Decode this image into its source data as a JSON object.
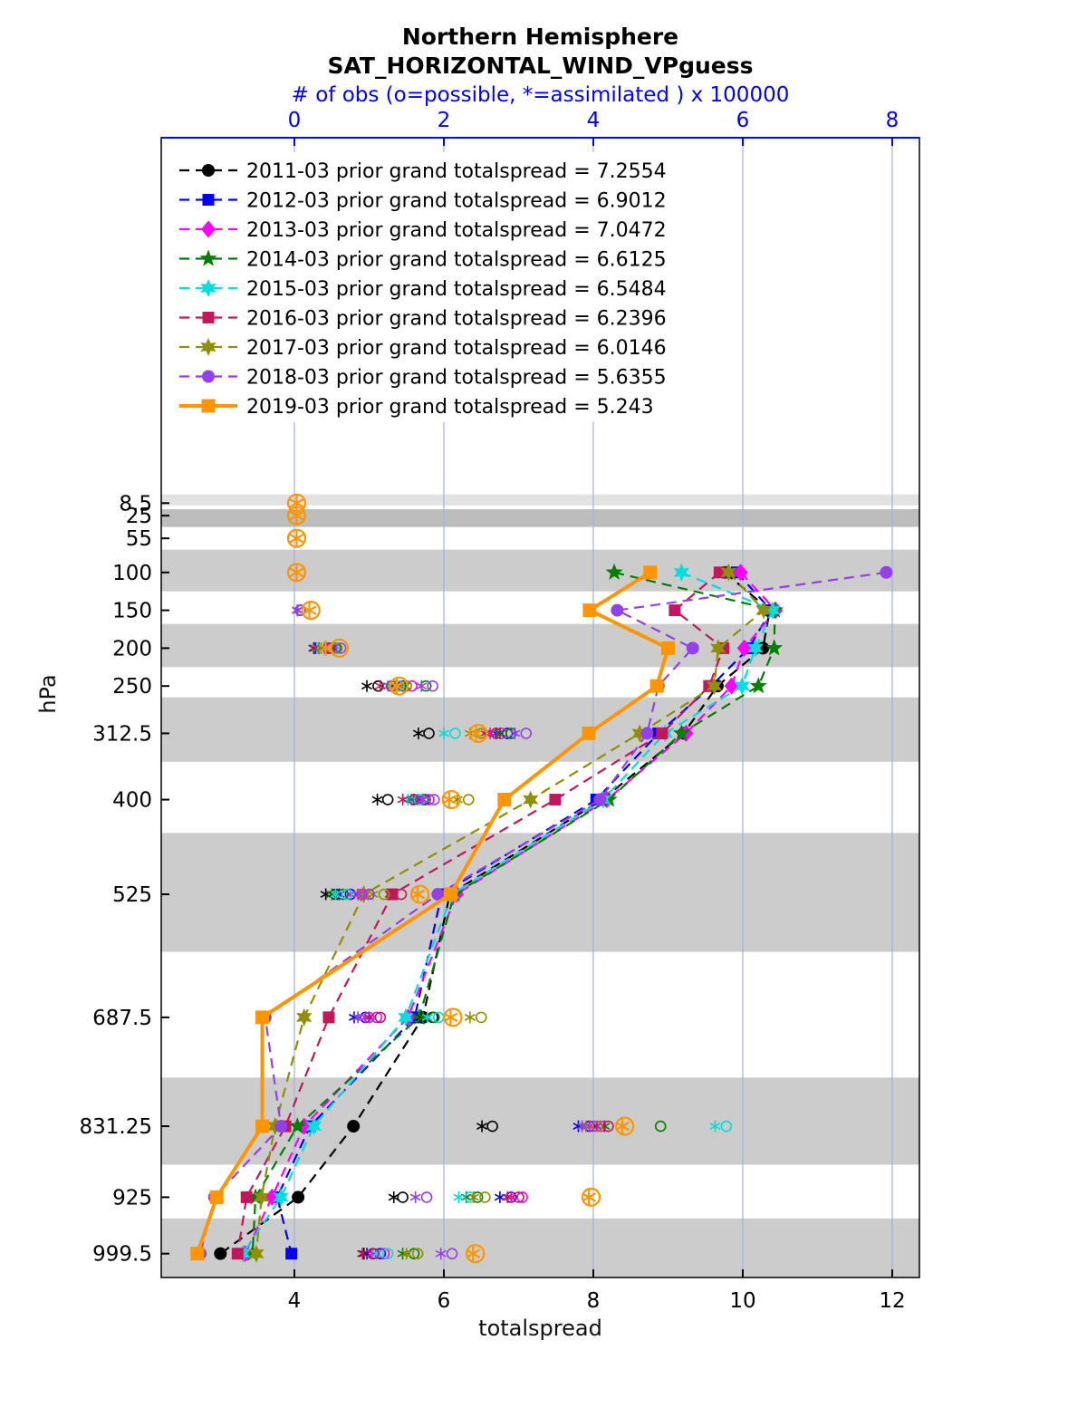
{
  "chart_data": {
    "type": "line",
    "title": "Northern Hemisphere",
    "subtitle": "SAT_HORIZONTAL_WIND_VPguess",
    "obs_axis_label": "# of obs (o=possible, *=assimilated ) x 100000",
    "xlabel": "totalspread",
    "ylabel": "hPa",
    "colors": {
      "axis_blue": "#0000ff",
      "grid": "#9fb3e0",
      "band_default": "#cccccc"
    },
    "x_bottom": {
      "range": [
        2.218,
        12.364
      ],
      "ticks": [
        4,
        6,
        8,
        10,
        12
      ]
    },
    "x_top": {
      "range": [
        -1.782,
        8.364
      ],
      "ticks": [
        0,
        2,
        4,
        6,
        8
      ]
    },
    "y_axis": {
      "range": [
        -474,
        1031
      ],
      "unit": "hPa",
      "levels": [
        8.5,
        25,
        55,
        100,
        150,
        200,
        250,
        312.5,
        400,
        525,
        687.5,
        831.25,
        925,
        999.5
      ]
    },
    "spread_levels": [
      100,
      150,
      200,
      250,
      312.5,
      400,
      525,
      687.5,
      831.25,
      925,
      999.5
    ],
    "obs_levels": [
      8.5,
      25,
      55,
      100,
      150,
      200,
      250,
      312.5,
      400,
      525,
      687.5,
      831.25,
      925,
      999.5
    ],
    "bands": [
      {
        "from": -3,
        "to": 11.5,
        "color": "#e2e2e2"
      },
      {
        "from": 16.5,
        "to": 40,
        "color": "#bdbdbd"
      },
      {
        "from": 70,
        "to": 125,
        "color": "#cccccc"
      },
      {
        "from": 168,
        "to": 225,
        "color": "#cccccc"
      },
      {
        "from": 265,
        "to": 350,
        "color": "#cccccc"
      },
      {
        "from": 444,
        "to": 601,
        "color": "#cccccc"
      },
      {
        "from": 767,
        "to": 882,
        "color": "#cccccc"
      },
      {
        "from": 953,
        "to": 1031,
        "color": "#cccccc"
      }
    ],
    "series": [
      {
        "name": "2011-03",
        "legend_label": "2011-03 prior grand totalspread = 7.2554",
        "grand_totalspread": 7.2554,
        "color": "#000000",
        "marker": "circle",
        "line": "dashed",
        "width": 2.2,
        "highlight": false,
        "spread": [
          9.76,
          10.36,
          10.27,
          9.66,
          9.21,
          8.12,
          6.08,
          5.72,
          4.79,
          4.05,
          3.01
        ],
        "obs_possible": [
          null,
          null,
          null,
          null,
          0.08,
          0.45,
          1.12,
          1.8,
          1.25,
          0.55,
          1.85,
          2.65,
          1.45,
          1.05
        ],
        "obs_assimilated": [
          null,
          null,
          null,
          null,
          0.04,
          0.26,
          0.97,
          1.66,
          1.11,
          0.42,
          1.7,
          2.51,
          1.33,
          0.93
        ]
      },
      {
        "name": "2012-03",
        "legend_label": "2012-03 prior grand totalspread = 6.9012",
        "grand_totalspread": 6.9012,
        "color": "#0000ff",
        "marker": "square",
        "line": "dashed",
        "width": 2.2,
        "highlight": false,
        "spread": [
          9.92,
          10.38,
          10.08,
          9.58,
          8.87,
          8.04,
          5.97,
          5.61,
          4.21,
          3.77,
          3.96
        ],
        "obs_possible": [
          null,
          null,
          null,
          null,
          0.08,
          0.48,
          1.45,
          2.85,
          1.75,
          0.75,
          0.95,
          3.95,
          2.9,
          1.15
        ],
        "obs_assimilated": [
          null,
          null,
          null,
          null,
          0.04,
          0.28,
          1.3,
          2.7,
          1.6,
          0.6,
          0.8,
          3.8,
          2.75,
          0.97
        ]
      },
      {
        "name": "2013-03",
        "legend_label": "2013-03 prior grand totalspread = 7.0472",
        "grand_totalspread": 7.0472,
        "color": "#ff00ff",
        "marker": "diamond",
        "line": "dashed",
        "width": 2.2,
        "highlight": false,
        "spread": [
          9.97,
          10.44,
          10.02,
          9.85,
          9.24,
          8.18,
          6.17,
          5.52,
          4.13,
          3.7,
          3.34
        ],
        "obs_possible": [
          null,
          null,
          null,
          null,
          0.08,
          0.5,
          1.57,
          2.77,
          1.8,
          0.9,
          1.1,
          4.1,
          3.05,
          1.2
        ],
        "obs_assimilated": [
          null,
          null,
          null,
          null,
          0.04,
          0.3,
          1.42,
          2.62,
          1.65,
          0.75,
          0.95,
          3.95,
          2.9,
          1.05
        ]
      },
      {
        "name": "2014-03",
        "legend_label": "2014-03 prior grand totalspread = 6.6125",
        "grand_totalspread": 6.6125,
        "color": "#007f00",
        "marker": "pentagram",
        "line": "dashed",
        "width": 2.2,
        "highlight": false,
        "spread": [
          8.28,
          10.43,
          10.42,
          10.21,
          9.18,
          8.21,
          6.14,
          5.67,
          4.04,
          3.48,
          3.44
        ],
        "obs_possible": [
          null,
          null,
          null,
          null,
          0.08,
          0.55,
          1.76,
          2.9,
          1.72,
          0.65,
          1.87,
          4.9,
          2.45,
          1.6
        ],
        "obs_assimilated": [
          null,
          null,
          null,
          null,
          0.04,
          0.33,
          1.48,
          2.75,
          1.57,
          0.5,
          1.72,
          4.15,
          2.3,
          1.45
        ]
      },
      {
        "name": "2015-03",
        "legend_label": "2015-03 prior grand totalspread = 6.5484",
        "grand_totalspread": 6.5484,
        "color": "#00dede",
        "marker": "hexagram",
        "line": "dashed",
        "width": 2.2,
        "highlight": false,
        "spread": [
          9.18,
          10.4,
          10.17,
          9.99,
          8.96,
          8.13,
          6.11,
          5.49,
          4.26,
          3.82,
          3.31
        ],
        "obs_possible": [
          null,
          null,
          null,
          null,
          0.08,
          0.52,
          1.4,
          2.15,
          1.67,
          0.7,
          1.93,
          5.78,
          2.35,
          1.25
        ],
        "obs_assimilated": [
          null,
          null,
          null,
          null,
          0.04,
          0.3,
          1.25,
          2.0,
          1.52,
          0.55,
          1.78,
          5.63,
          2.2,
          1.1
        ]
      },
      {
        "name": "2016-03",
        "legend_label": "2016-03 prior grand totalspread = 6.2396",
        "grand_totalspread": 6.2396,
        "color": "#c2185b",
        "marker": "square",
        "line": "dashed",
        "width": 2.2,
        "highlight": false,
        "spread": [
          9.69,
          9.09,
          9.74,
          9.55,
          8.92,
          7.49,
          5.31,
          4.46,
          3.88,
          3.36,
          3.24
        ],
        "obs_possible": [
          null,
          null,
          null,
          null,
          0.08,
          0.47,
          1.3,
          2.7,
          1.6,
          1.43,
          1.15,
          4.2,
          3.0,
          1.06
        ],
        "obs_assimilated": [
          null,
          null,
          null,
          null,
          0.04,
          0.27,
          1.15,
          2.55,
          1.45,
          1.28,
          1.0,
          4.05,
          2.85,
          0.91
        ]
      },
      {
        "name": "2017-03",
        "legend_label": "2017-03 prior grand totalspread = 6.0146",
        "grand_totalspread": 6.0146,
        "color": "#8f8f00",
        "marker": "hexagram",
        "line": "dashed",
        "width": 2.2,
        "highlight": false,
        "spread": [
          9.81,
          10.28,
          9.67,
          9.62,
          8.62,
          7.16,
          4.93,
          4.13,
          3.74,
          3.56,
          3.49
        ],
        "obs_possible": [
          null,
          null,
          null,
          null,
          0.08,
          0.57,
          1.5,
          2.5,
          2.33,
          1.2,
          2.5,
          4.05,
          2.55,
          1.65
        ],
        "obs_assimilated": [
          null,
          null,
          null,
          null,
          0.04,
          0.36,
          1.35,
          2.35,
          2.18,
          1.05,
          2.35,
          3.9,
          2.4,
          1.5
        ]
      },
      {
        "name": "2018-03",
        "legend_label": "2018-03 prior grand totalspread = 5.6355",
        "grand_totalspread": 5.6355,
        "color": "#9440e8",
        "marker": "circle",
        "line": "dashed",
        "width": 2.2,
        "highlight": false,
        "spread": [
          11.92,
          8.32,
          9.33,
          8.87,
          8.72,
          8.09,
          5.92,
          3.61,
          3.82,
          2.93,
          2.74
        ],
        "obs_possible": [
          null,
          null,
          null,
          null,
          0.08,
          0.62,
          1.85,
          3.1,
          1.87,
          1.0,
          1.0,
          4.0,
          1.77,
          2.11
        ],
        "obs_assimilated": [
          null,
          null,
          null,
          null,
          0.04,
          0.4,
          1.7,
          2.95,
          1.72,
          0.85,
          0.85,
          3.85,
          1.62,
          1.96
        ]
      },
      {
        "name": "2019-03",
        "legend_label": "2019-03 prior grand totalspread = 5.243",
        "grand_totalspread": 5.243,
        "color": "#ff9500",
        "marker": "square",
        "line": "solid",
        "width": 4,
        "highlight": true,
        "spread": [
          8.76,
          7.95,
          9.0,
          8.85,
          7.94,
          6.81,
          6.09,
          3.57,
          3.57,
          2.96,
          2.7
        ],
        "obs_possible": [
          0.03,
          0.03,
          0.03,
          0.03,
          0.22,
          0.6,
          1.4,
          2.46,
          2.1,
          1.68,
          2.12,
          4.42,
          3.97,
          2.42
        ],
        "obs_assimilated": [
          0.03,
          0.03,
          0.03,
          0.03,
          0.2,
          0.42,
          1.37,
          2.43,
          2.07,
          1.65,
          2.09,
          4.39,
          3.94,
          2.39
        ]
      }
    ]
  }
}
